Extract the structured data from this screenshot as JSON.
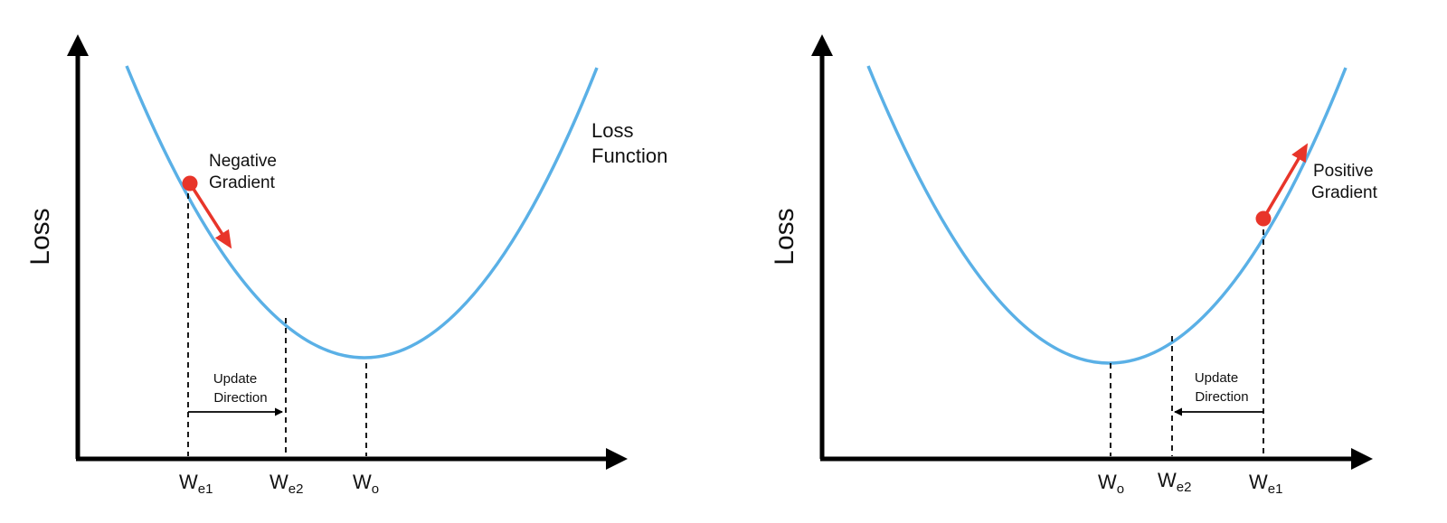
{
  "colors": {
    "curve": "#5ab0e6",
    "gradient": "#e8352a",
    "axis": "#000000"
  },
  "left": {
    "ylabel": "Loss",
    "curve_label_line1": "Loss",
    "curve_label_line2": "Function",
    "gradient_label_line1": "Negative",
    "gradient_label_line2": "Gradient",
    "update_line1": "Update",
    "update_line2": "Direction",
    "ticks": [
      {
        "base": "W",
        "sub": "e1"
      },
      {
        "base": "W",
        "sub": "e2"
      },
      {
        "base": "W",
        "sub": "o"
      }
    ]
  },
  "right": {
    "ylabel": "Loss",
    "gradient_label_line1": "Positive",
    "gradient_label_line2": "Gradient",
    "update_line1": "Update",
    "update_line2": "Direction",
    "ticks": [
      {
        "base": "W",
        "sub": "o"
      },
      {
        "base": "W",
        "sub": "e2"
      },
      {
        "base": "W",
        "sub": "e1"
      }
    ]
  }
}
